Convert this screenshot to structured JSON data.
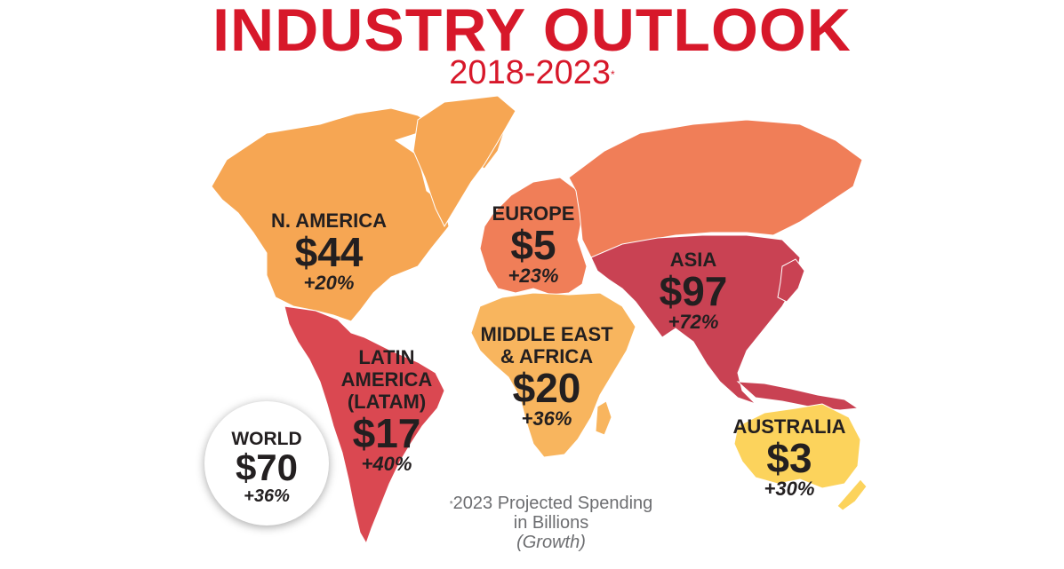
{
  "title": "INDUSTRY OUTLOOK",
  "subtitle": "2018-2023",
  "subtitle_mark": "*",
  "colors": {
    "title": "#d7182a",
    "north_america": "#f6a653",
    "europe": "#f07e58",
    "asia": "#c94253",
    "latin_america": "#da4851",
    "middle_east_africa": "#f8b55e",
    "australia": "#fcd35c"
  },
  "regions": {
    "north_america": {
      "name": "N. AMERICA",
      "amount": "$44",
      "growth": "+20%"
    },
    "europe": {
      "name": "EUROPE",
      "amount": "$5",
      "growth": "+23%"
    },
    "asia": {
      "name": "ASIA",
      "amount": "$97",
      "growth": "+72%"
    },
    "middle_east_africa": {
      "name_line1": "MIDDLE EAST",
      "name_line2": "& AFRICA",
      "amount": "$20",
      "growth": "+36%"
    },
    "latin_america": {
      "name_line1": "LATIN",
      "name_line2": "AMERICA",
      "name_line3": "(LATAM)",
      "amount": "$17",
      "growth": "+40%"
    },
    "australia": {
      "name": "AUSTRALIA",
      "amount": "$3",
      "growth": "+30%"
    }
  },
  "world": {
    "name": "WORLD",
    "amount": "$70",
    "growth": "+36%"
  },
  "footnote": {
    "mark": "*",
    "line1": "2023 Projected Spending",
    "line2": "in Billions",
    "line3": "(Growth)"
  }
}
